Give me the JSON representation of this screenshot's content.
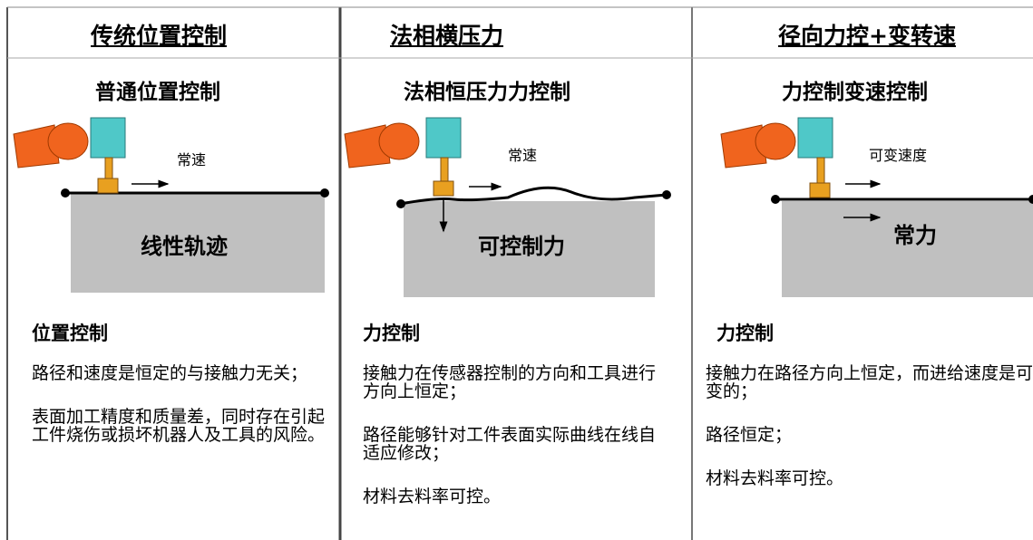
{
  "columns": [
    {
      "header": "传统位置控制",
      "subtitle": "普通位置控制",
      "speed_label": "常速",
      "surface_label": "线性轨迹",
      "section": "位置控制",
      "paragraphs": [
        "路径和速度是恒定的与接触力无关；",
        "表面加工精度和质量差，同时存在引起工件烧伤或损坏机器人及工具的风险。"
      ]
    },
    {
      "header": "法相横压力",
      "subtitle": "法相恒压力力控制",
      "speed_label": "常速",
      "surface_label": "可控制力",
      "section": "力控制",
      "paragraphs": [
        "接触力在传感器控制的方向和工具进行方向上恒定；",
        "路径能够针对工件表面实际曲线在线自适应修改；",
        "材料去料率可控。"
      ]
    },
    {
      "header": "径向力控+变转速",
      "subtitle": "力控制变速控制",
      "speed_label": "可变速度",
      "surface_label": "常力",
      "section": "力控制",
      "paragraphs": [
        "接触力在路径方向上恒定，而进给速度是可变的；",
        "路径恒定；",
        "材料去料率可控。"
      ]
    }
  ]
}
